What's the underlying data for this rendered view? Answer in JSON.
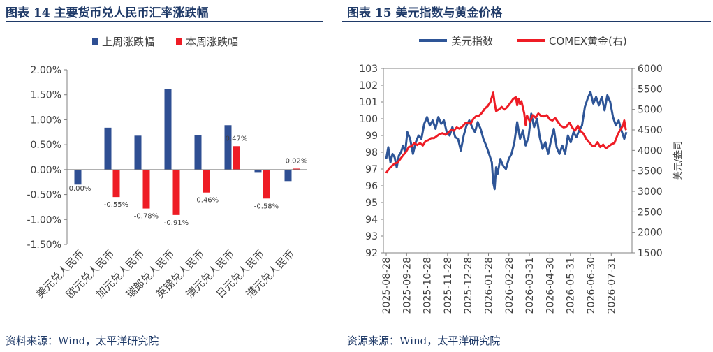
{
  "left": {
    "title": "图表 14  主要货币兑人民币汇率涨跌幅",
    "source": "资料来源：Wind，太平洋研究院"
  },
  "right": {
    "title": "图表 15  美元指数与黄金价格",
    "source": "资源来源：Wind，太平洋研究院"
  },
  "chart_data": [
    {
      "type": "bar",
      "categories": [
        "美元兑人民币",
        "欧元兑人民币",
        "加元兑人民币",
        "瑞郎兑人民币",
        "英镑兑人民币",
        "澳元兑人民币",
        "日元兑人民币",
        "港元兑人民币"
      ],
      "series": [
        {
          "name": "上周涨跌幅",
          "color": "#2f4f93",
          "values": [
            -0.3,
            0.84,
            0.68,
            1.61,
            0.69,
            0.89,
            -0.05,
            -0.23
          ]
        },
        {
          "name": "本周涨跌幅",
          "color": "#ee1c25",
          "values": [
            0.0,
            -0.55,
            -0.78,
            -0.91,
            -0.46,
            0.47,
            -0.58,
            0.02
          ]
        }
      ],
      "data_labels": [
        "0.00%",
        "-0.55%",
        "-0.78%",
        "-0.91%",
        "-0.46%",
        "0.47%",
        "-0.58%",
        "0.02%"
      ],
      "yticks": [
        "2.00%",
        "1.50%",
        "1.00%",
        "0.50%",
        "0.00%",
        "-0.50%",
        "-1.00%",
        "-1.50%"
      ],
      "ylim": [
        -1.5,
        2.0
      ],
      "legend_position": "top"
    },
    {
      "type": "line",
      "x": [
        "2025-08-28",
        "2025-09-28",
        "2025-10-28",
        "2025-11-28",
        "2025-12-28",
        "2026-01-28",
        "2026-02-28",
        "2026-03-31",
        "2026-04-30",
        "2026-05-31",
        "2026-06-30",
        "2026-07-31"
      ],
      "series": [
        {
          "name": "美元指数",
          "axis": "left",
          "color": "#2e5597",
          "values": [
            [
              0,
              97.6
            ],
            [
              3,
              98.3
            ],
            [
              6,
              97.4
            ],
            [
              9,
              97.9
            ],
            [
              12,
              97.7
            ],
            [
              15,
              97.1
            ],
            [
              18,
              97.8
            ],
            [
              21,
              98.0
            ],
            [
              24,
              98.4
            ],
            [
              27,
              98.0
            ],
            [
              30,
              99.2
            ],
            [
              34,
              98.8
            ],
            [
              38,
              97.9
            ],
            [
              42,
              98.6
            ],
            [
              46,
              99.0
            ],
            [
              50,
              98.8
            ],
            [
              54,
              99.7
            ],
            [
              58,
              100.1
            ],
            [
              62,
              99.6
            ],
            [
              66,
              99.9
            ],
            [
              70,
              99.4
            ],
            [
              74,
              100.1
            ],
            [
              78,
              99.7
            ],
            [
              82,
              99.9
            ],
            [
              86,
              99.2
            ],
            [
              90,
              99.0
            ],
            [
              94,
              99.5
            ],
            [
              98,
              98.9
            ],
            [
              102,
              98.8
            ],
            [
              106,
              98.1
            ],
            [
              110,
              99.0
            ],
            [
              114,
              99.6
            ],
            [
              118,
              99.9
            ],
            [
              122,
              99.5
            ],
            [
              126,
              99.2
            ],
            [
              130,
              99.8
            ],
            [
              134,
              99.4
            ],
            [
              138,
              98.8
            ],
            [
              142,
              98.4
            ],
            [
              146,
              97.9
            ],
            [
              150,
              97.4
            ],
            [
              152,
              96.2
            ],
            [
              154,
              95.8
            ],
            [
              156,
              97.1
            ],
            [
              158,
              96.7
            ],
            [
              162,
              97.6
            ],
            [
              166,
              97.2
            ],
            [
              170,
              97.0
            ],
            [
              174,
              97.6
            ],
            [
              178,
              97.9
            ],
            [
              182,
              98.6
            ],
            [
              186,
              99.8
            ],
            [
              190,
              98.8
            ],
            [
              194,
              99.3
            ],
            [
              198,
              98.4
            ],
            [
              202,
              98.9
            ],
            [
              206,
              100.3
            ],
            [
              210,
              99.5
            ],
            [
              214,
              100.0
            ],
            [
              218,
              98.9
            ],
            [
              222,
              98.2
            ],
            [
              226,
              98.6
            ],
            [
              230,
              97.9
            ],
            [
              234,
              98.7
            ],
            [
              238,
              99.4
            ],
            [
              242,
              98.3
            ],
            [
              246,
              97.9
            ],
            [
              250,
              98.4
            ],
            [
              254,
              97.9
            ],
            [
              258,
              99.0
            ],
            [
              262,
              98.6
            ],
            [
              266,
              99.2
            ],
            [
              270,
              98.9
            ],
            [
              274,
              99.3
            ],
            [
              278,
              99.6
            ],
            [
              282,
              100.7
            ],
            [
              286,
              101.2
            ],
            [
              290,
              101.6
            ],
            [
              294,
              100.9
            ],
            [
              298,
              101.3
            ],
            [
              302,
              100.8
            ],
            [
              306,
              101.3
            ],
            [
              310,
              100.5
            ],
            [
              314,
              101.4
            ],
            [
              318,
              101.0
            ],
            [
              322,
              100.1
            ],
            [
              326,
              99.6
            ],
            [
              330,
              99.9
            ],
            [
              334,
              99.3
            ],
            [
              338,
              98.8
            ],
            [
              341,
              99.2
            ]
          ]
        },
        {
          "name": "COMEX黄金(右)",
          "axis": "right",
          "color": "#ee1c25",
          "values": [
            [
              0,
              3450
            ],
            [
              4,
              3550
            ],
            [
              8,
              3620
            ],
            [
              12,
              3680
            ],
            [
              16,
              3700
            ],
            [
              20,
              3790
            ],
            [
              24,
              3880
            ],
            [
              28,
              3960
            ],
            [
              32,
              4080
            ],
            [
              36,
              4100
            ],
            [
              40,
              4180
            ],
            [
              44,
              4130
            ],
            [
              48,
              4180
            ],
            [
              52,
              4120
            ],
            [
              56,
              4230
            ],
            [
              60,
              4250
            ],
            [
              64,
              4300
            ],
            [
              68,
              4300
            ],
            [
              72,
              4350
            ],
            [
              76,
              4400
            ],
            [
              80,
              4420
            ],
            [
              84,
              4380
            ],
            [
              88,
              4430
            ],
            [
              92,
              4500
            ],
            [
              96,
              4480
            ],
            [
              100,
              4560
            ],
            [
              104,
              4530
            ],
            [
              108,
              4580
            ],
            [
              112,
              4660
            ],
            [
              116,
              4680
            ],
            [
              120,
              4650
            ],
            [
              124,
              4780
            ],
            [
              128,
              4840
            ],
            [
              132,
              4850
            ],
            [
              136,
              4920
            ],
            [
              140,
              5020
            ],
            [
              144,
              5080
            ],
            [
              148,
              5180
            ],
            [
              150,
              5300
            ],
            [
              152,
              5410
            ],
            [
              154,
              5150
            ],
            [
              156,
              4960
            ],
            [
              160,
              5000
            ],
            [
              164,
              5060
            ],
            [
              168,
              5000
            ],
            [
              172,
              5060
            ],
            [
              176,
              5150
            ],
            [
              180,
              5250
            ],
            [
              184,
              5300
            ],
            [
              186,
              5100
            ],
            [
              188,
              5260
            ],
            [
              190,
              5130
            ],
            [
              192,
              5200
            ],
            [
              196,
              4900
            ],
            [
              198,
              4620
            ],
            [
              200,
              4850
            ],
            [
              204,
              4700
            ],
            [
              208,
              4860
            ],
            [
              212,
              4800
            ],
            [
              216,
              4900
            ],
            [
              220,
              4840
            ],
            [
              224,
              4830
            ],
            [
              228,
              4860
            ],
            [
              232,
              4760
            ],
            [
              236,
              4730
            ],
            [
              240,
              4790
            ],
            [
              244,
              4690
            ],
            [
              248,
              4600
            ],
            [
              252,
              4560
            ],
            [
              256,
              4580
            ],
            [
              260,
              4680
            ],
            [
              264,
              4560
            ],
            [
              268,
              4480
            ],
            [
              272,
              4600
            ],
            [
              276,
              4470
            ],
            [
              280,
              4410
            ],
            [
              284,
              4280
            ],
            [
              288,
              4200
            ],
            [
              292,
              4120
            ],
            [
              296,
              4100
            ],
            [
              300,
              4200
            ],
            [
              304,
              4080
            ],
            [
              308,
              4140
            ],
            [
              312,
              4050
            ],
            [
              316,
              4100
            ],
            [
              320,
              4150
            ],
            [
              324,
              4180
            ],
            [
              328,
              4360
            ],
            [
              332,
              4500
            ],
            [
              336,
              4600
            ],
            [
              338,
              4730
            ],
            [
              340,
              4520
            ],
            [
              341,
              4500
            ]
          ]
        }
      ],
      "y_left": {
        "ticks": [
          "103",
          "102",
          "101",
          "100",
          "99",
          "98",
          "97",
          "96",
          "95",
          "94",
          "93",
          "92"
        ],
        "ylim": [
          92,
          103
        ]
      },
      "y_right": {
        "ticks": [
          "6000",
          "5500",
          "5000",
          "4500",
          "4000",
          "3500",
          "3000",
          "2500",
          "2000",
          "1500"
        ],
        "ylim": [
          1500,
          6000
        ],
        "label": "美元/盎司"
      },
      "legend_position": "top"
    }
  ]
}
